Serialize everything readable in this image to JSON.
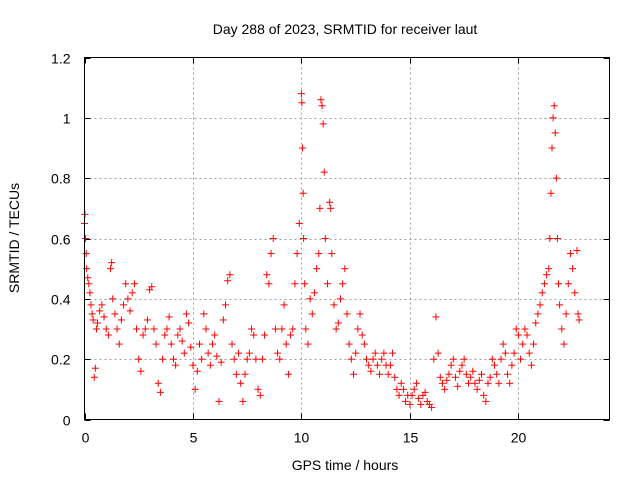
{
  "chart_data": {
    "type": "scatter",
    "title": "Day 288 of 2023, SRMTID for receiver laut",
    "xlabel": "GPS time / hours",
    "ylabel": "SRMTID / TECUs",
    "xlim": [
      0,
      24.2
    ],
    "ylim": [
      0,
      1.2
    ],
    "x_ticks": [
      0,
      5,
      10,
      15,
      20
    ],
    "y_ticks": [
      0,
      0.2,
      0.4,
      0.6,
      0.8,
      1.0,
      1.2
    ],
    "x_tick_labels": [
      "0",
      "5",
      "10",
      "15",
      "20"
    ],
    "y_tick_labels": [
      "0",
      "0.2",
      "0.4",
      "0.6",
      "0.8",
      "1",
      "1.2"
    ],
    "grid": true,
    "marker": "plus",
    "color": "#ff0000",
    "series": [
      {
        "name": "SRMTID",
        "points": [
          [
            0.0,
            0.65
          ],
          [
            0.02,
            0.68
          ],
          [
            0.05,
            0.6
          ],
          [
            0.08,
            0.55
          ],
          [
            0.1,
            0.5
          ],
          [
            0.15,
            0.47
          ],
          [
            0.2,
            0.45
          ],
          [
            0.25,
            0.42
          ],
          [
            0.3,
            0.38
          ],
          [
            0.35,
            0.35
          ],
          [
            0.4,
            0.33
          ],
          [
            0.45,
            0.14
          ],
          [
            0.5,
            0.17
          ],
          [
            0.55,
            0.3
          ],
          [
            0.6,
            0.32
          ],
          [
            0.7,
            0.36
          ],
          [
            0.8,
            0.38
          ],
          [
            0.9,
            0.34
          ],
          [
            1.0,
            0.3
          ],
          [
            1.1,
            0.28
          ],
          [
            1.2,
            0.5
          ],
          [
            1.25,
            0.52
          ],
          [
            1.3,
            0.4
          ],
          [
            1.4,
            0.35
          ],
          [
            1.5,
            0.3
          ],
          [
            1.6,
            0.25
          ],
          [
            1.7,
            0.33
          ],
          [
            1.8,
            0.38
          ],
          [
            1.9,
            0.45
          ],
          [
            2.0,
            0.4
          ],
          [
            2.1,
            0.36
          ],
          [
            2.2,
            0.42
          ],
          [
            2.3,
            0.45
          ],
          [
            2.4,
            0.3
          ],
          [
            2.5,
            0.2
          ],
          [
            2.6,
            0.16
          ],
          [
            2.7,
            0.28
          ],
          [
            2.8,
            0.3
          ],
          [
            2.9,
            0.33
          ],
          [
            3.0,
            0.43
          ],
          [
            3.1,
            0.44
          ],
          [
            3.2,
            0.3
          ],
          [
            3.3,
            0.25
          ],
          [
            3.4,
            0.12
          ],
          [
            3.5,
            0.09
          ],
          [
            3.6,
            0.2
          ],
          [
            3.7,
            0.28
          ],
          [
            3.8,
            0.3
          ],
          [
            3.9,
            0.34
          ],
          [
            4.0,
            0.25
          ],
          [
            4.1,
            0.2
          ],
          [
            4.2,
            0.18
          ],
          [
            4.3,
            0.28
          ],
          [
            4.4,
            0.3
          ],
          [
            4.5,
            0.26
          ],
          [
            4.6,
            0.22
          ],
          [
            4.7,
            0.35
          ],
          [
            4.8,
            0.32
          ],
          [
            4.9,
            0.24
          ],
          [
            5.0,
            0.18
          ],
          [
            5.1,
            0.1
          ],
          [
            5.2,
            0.16
          ],
          [
            5.3,
            0.25
          ],
          [
            5.4,
            0.2
          ],
          [
            5.5,
            0.35
          ],
          [
            5.6,
            0.3
          ],
          [
            5.7,
            0.22
          ],
          [
            5.8,
            0.18
          ],
          [
            5.9,
            0.25
          ],
          [
            6.0,
            0.28
          ],
          [
            6.1,
            0.21
          ],
          [
            6.2,
            0.06
          ],
          [
            6.3,
            0.19
          ],
          [
            6.4,
            0.33
          ],
          [
            6.5,
            0.38
          ],
          [
            6.6,
            0.46
          ],
          [
            6.7,
            0.48
          ],
          [
            6.8,
            0.25
          ],
          [
            6.9,
            0.2
          ],
          [
            7.0,
            0.15
          ],
          [
            7.1,
            0.22
          ],
          [
            7.2,
            0.12
          ],
          [
            7.3,
            0.06
          ],
          [
            7.4,
            0.15
          ],
          [
            7.5,
            0.2
          ],
          [
            7.6,
            0.22
          ],
          [
            7.7,
            0.3
          ],
          [
            7.8,
            0.28
          ],
          [
            7.9,
            0.2
          ],
          [
            8.0,
            0.1
          ],
          [
            8.1,
            0.08
          ],
          [
            8.2,
            0.2
          ],
          [
            8.3,
            0.28
          ],
          [
            8.4,
            0.48
          ],
          [
            8.5,
            0.45
          ],
          [
            8.6,
            0.55
          ],
          [
            8.7,
            0.6
          ],
          [
            8.8,
            0.3
          ],
          [
            8.9,
            0.22
          ],
          [
            9.0,
            0.2
          ],
          [
            9.1,
            0.3
          ],
          [
            9.2,
            0.38
          ],
          [
            9.3,
            0.25
          ],
          [
            9.4,
            0.15
          ],
          [
            9.5,
            0.28
          ],
          [
            9.6,
            0.3
          ],
          [
            9.7,
            0.45
          ],
          [
            9.8,
            0.55
          ],
          [
            9.9,
            0.65
          ],
          [
            10.0,
            1.08
          ],
          [
            10.02,
            1.05
          ],
          [
            10.05,
            0.9
          ],
          [
            10.08,
            0.75
          ],
          [
            10.1,
            0.6
          ],
          [
            10.15,
            0.45
          ],
          [
            10.2,
            0.3
          ],
          [
            10.3,
            0.25
          ],
          [
            10.4,
            0.4
          ],
          [
            10.5,
            0.35
          ],
          [
            10.6,
            0.42
          ],
          [
            10.7,
            0.5
          ],
          [
            10.8,
            0.55
          ],
          [
            10.85,
            0.7
          ],
          [
            10.9,
            1.06
          ],
          [
            10.95,
            1.04
          ],
          [
            11.0,
            0.98
          ],
          [
            11.05,
            0.82
          ],
          [
            11.1,
            0.6
          ],
          [
            11.2,
            0.45
          ],
          [
            11.3,
            0.72
          ],
          [
            11.35,
            0.7
          ],
          [
            11.4,
            0.55
          ],
          [
            11.5,
            0.38
          ],
          [
            11.6,
            0.3
          ],
          [
            11.7,
            0.32
          ],
          [
            11.8,
            0.4
          ],
          [
            11.9,
            0.45
          ],
          [
            12.0,
            0.5
          ],
          [
            12.1,
            0.35
          ],
          [
            12.2,
            0.25
          ],
          [
            12.3,
            0.2
          ],
          [
            12.4,
            0.15
          ],
          [
            12.5,
            0.22
          ],
          [
            12.6,
            0.3
          ],
          [
            12.7,
            0.35
          ],
          [
            12.8,
            0.28
          ],
          [
            12.9,
            0.25
          ],
          [
            13.0,
            0.2
          ],
          [
            13.1,
            0.18
          ],
          [
            13.2,
            0.16
          ],
          [
            13.3,
            0.2
          ],
          [
            13.4,
            0.22
          ],
          [
            13.5,
            0.18
          ],
          [
            13.6,
            0.15
          ],
          [
            13.7,
            0.2
          ],
          [
            13.8,
            0.22
          ],
          [
            13.9,
            0.18
          ],
          [
            14.0,
            0.15
          ],
          [
            14.1,
            0.18
          ],
          [
            14.2,
            0.22
          ],
          [
            14.3,
            0.14
          ],
          [
            14.4,
            0.1
          ],
          [
            14.5,
            0.08
          ],
          [
            14.6,
            0.12
          ],
          [
            14.7,
            0.1
          ],
          [
            14.8,
            0.06
          ],
          [
            14.9,
            0.08
          ],
          [
            15.0,
            0.05
          ],
          [
            15.1,
            0.08
          ],
          [
            15.2,
            0.1
          ],
          [
            15.3,
            0.12
          ],
          [
            15.4,
            0.07
          ],
          [
            15.5,
            0.05
          ],
          [
            15.6,
            0.08
          ],
          [
            15.7,
            0.09
          ],
          [
            15.8,
            0.06
          ],
          [
            15.9,
            0.05
          ],
          [
            16.0,
            0.04
          ],
          [
            16.1,
            0.2
          ],
          [
            16.2,
            0.34
          ],
          [
            16.3,
            0.22
          ],
          [
            16.4,
            0.14
          ],
          [
            16.5,
            0.12
          ],
          [
            16.6,
            0.1
          ],
          [
            16.7,
            0.13
          ],
          [
            16.8,
            0.15
          ],
          [
            16.9,
            0.18
          ],
          [
            17.0,
            0.2
          ],
          [
            17.1,
            0.14
          ],
          [
            17.2,
            0.11
          ],
          [
            17.3,
            0.16
          ],
          [
            17.4,
            0.18
          ],
          [
            17.5,
            0.2
          ],
          [
            17.6,
            0.15
          ],
          [
            17.7,
            0.12
          ],
          [
            17.8,
            0.14
          ],
          [
            17.9,
            0.16
          ],
          [
            18.0,
            0.12
          ],
          [
            18.1,
            0.1
          ],
          [
            18.2,
            0.13
          ],
          [
            18.3,
            0.15
          ],
          [
            18.4,
            0.08
          ],
          [
            18.5,
            0.06
          ],
          [
            18.6,
            0.12
          ],
          [
            18.7,
            0.14
          ],
          [
            18.8,
            0.2
          ],
          [
            18.9,
            0.18
          ],
          [
            19.0,
            0.15
          ],
          [
            19.1,
            0.12
          ],
          [
            19.2,
            0.2
          ],
          [
            19.3,
            0.25
          ],
          [
            19.4,
            0.22
          ],
          [
            19.5,
            0.15
          ],
          [
            19.6,
            0.12
          ],
          [
            19.7,
            0.18
          ],
          [
            19.8,
            0.22
          ],
          [
            19.9,
            0.3
          ],
          [
            20.0,
            0.28
          ],
          [
            20.1,
            0.2
          ],
          [
            20.2,
            0.25
          ],
          [
            20.3,
            0.3
          ],
          [
            20.4,
            0.28
          ],
          [
            20.5,
            0.22
          ],
          [
            20.6,
            0.18
          ],
          [
            20.7,
            0.25
          ],
          [
            20.8,
            0.32
          ],
          [
            20.9,
            0.35
          ],
          [
            21.0,
            0.38
          ],
          [
            21.1,
            0.42
          ],
          [
            21.2,
            0.45
          ],
          [
            21.3,
            0.48
          ],
          [
            21.4,
            0.5
          ],
          [
            21.45,
            0.6
          ],
          [
            21.5,
            0.75
          ],
          [
            21.55,
            0.9
          ],
          [
            21.6,
            1.0
          ],
          [
            21.65,
            1.04
          ],
          [
            21.7,
            0.95
          ],
          [
            21.75,
            0.8
          ],
          [
            21.8,
            0.6
          ],
          [
            21.85,
            0.45
          ],
          [
            21.9,
            0.38
          ],
          [
            22.0,
            0.3
          ],
          [
            22.1,
            0.25
          ],
          [
            22.2,
            0.35
          ],
          [
            22.3,
            0.45
          ],
          [
            22.4,
            0.55
          ],
          [
            22.5,
            0.5
          ],
          [
            22.6,
            0.42
          ],
          [
            22.7,
            0.56
          ],
          [
            22.75,
            0.35
          ],
          [
            22.8,
            0.33
          ]
        ]
      }
    ]
  }
}
